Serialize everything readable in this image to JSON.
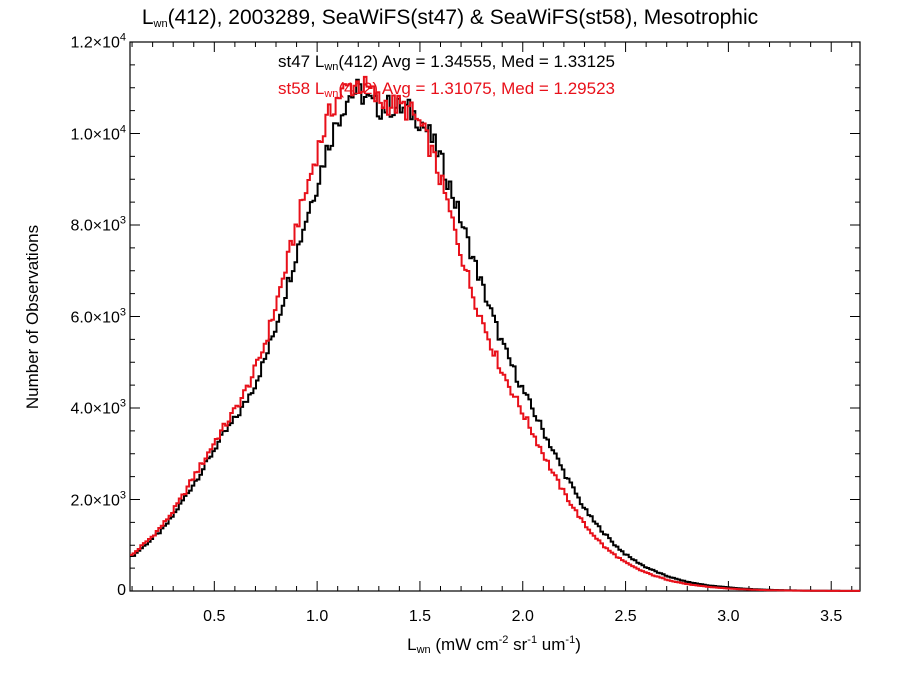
{
  "title": {
    "pre": "L",
    "sub": "wn",
    "post": "(412), 2003289, SeaWiFS(st47) & SeaWiFS(st58), Mesotrophic"
  },
  "ylabel": "Number of Observations",
  "xlabel": {
    "pre": "L",
    "sub": "wn",
    "p1": " (mW cm",
    "sup1": "-2",
    "p2": " sr",
    "sup2": "-1",
    "p3": " um",
    "sup3": "-1",
    "p4": ")"
  },
  "stats": {
    "st47": {
      "pre": "st47 L",
      "sub": "wn",
      "post": "(412) Avg = 1.34555, Med = 1.33125",
      "color": "#000000"
    },
    "st58": {
      "pre": "st58 L",
      "sub": "wn",
      "post": "(412) Avg = 1.31075, Med = 1.29523",
      "color": "#e8101a"
    }
  },
  "y_ticks": [
    {
      "value": 0,
      "base": "0",
      "exp": ""
    },
    {
      "value": 2000,
      "base": "2.0×10",
      "exp": "3"
    },
    {
      "value": 4000,
      "base": "4.0×10",
      "exp": "3"
    },
    {
      "value": 6000,
      "base": "6.0×10",
      "exp": "3"
    },
    {
      "value": 8000,
      "base": "8.0×10",
      "exp": "3"
    },
    {
      "value": 10000,
      "base": "1.0×10",
      "exp": "4"
    },
    {
      "value": 12000,
      "base": "1.2×10",
      "exp": "4"
    }
  ],
  "x_ticks": [
    "0.5",
    "1.0",
    "1.5",
    "2.0",
    "2.5",
    "3.0",
    "3.5"
  ],
  "chart_data": {
    "type": "line",
    "style": "histogram-step",
    "xlim": [
      0.09,
      3.64
    ],
    "ylim": [
      0,
      12000
    ],
    "grid": false,
    "series": [
      {
        "name": "st47",
        "color": "#000000",
        "x": [
          0.1,
          0.15,
          0.2,
          0.25,
          0.3,
          0.35,
          0.4,
          0.45,
          0.5,
          0.55,
          0.6,
          0.65,
          0.7,
          0.75,
          0.8,
          0.85,
          0.9,
          0.95,
          1.0,
          1.05,
          1.1,
          1.15,
          1.2,
          1.25,
          1.3,
          1.35,
          1.4,
          1.45,
          1.5,
          1.55,
          1.6,
          1.65,
          1.7,
          1.75,
          1.8,
          1.85,
          1.9,
          1.95,
          2.0,
          2.05,
          2.1,
          2.15,
          2.2,
          2.25,
          2.3,
          2.35,
          2.4,
          2.45,
          2.5,
          2.55,
          2.6,
          2.65,
          2.7,
          2.75,
          2.8,
          2.85,
          2.9,
          2.95,
          3.0,
          3.05,
          3.1,
          3.15,
          3.2,
          3.25,
          3.3,
          3.35,
          3.4,
          3.45,
          3.5,
          3.55,
          3.6,
          3.64
        ],
        "values": [
          750,
          950,
          1150,
          1350,
          1650,
          2000,
          2350,
          2700,
          3100,
          3450,
          3750,
          4100,
          4550,
          5100,
          5800,
          6600,
          7400,
          8200,
          8900,
          9700,
          10300,
          10800,
          10950,
          10700,
          10550,
          10600,
          10550,
          10500,
          10300,
          9950,
          9450,
          8800,
          8100,
          7400,
          6700,
          6050,
          5400,
          4900,
          4400,
          3950,
          3500,
          3050,
          2600,
          2200,
          1800,
          1500,
          1250,
          1000,
          800,
          650,
          520,
          420,
          330,
          260,
          200,
          160,
          125,
          100,
          80,
          60,
          45,
          35,
          25,
          20,
          15,
          10,
          8,
          6,
          4,
          3,
          2,
          2
        ]
      },
      {
        "name": "st58",
        "color": "#e8101a",
        "x": [
          0.1,
          0.15,
          0.2,
          0.25,
          0.3,
          0.35,
          0.4,
          0.45,
          0.5,
          0.55,
          0.6,
          0.65,
          0.7,
          0.75,
          0.8,
          0.85,
          0.9,
          0.95,
          1.0,
          1.05,
          1.1,
          1.15,
          1.2,
          1.25,
          1.3,
          1.35,
          1.4,
          1.45,
          1.5,
          1.55,
          1.6,
          1.65,
          1.7,
          1.75,
          1.8,
          1.85,
          1.9,
          1.95,
          2.0,
          2.05,
          2.1,
          2.15,
          2.2,
          2.25,
          2.3,
          2.35,
          2.4,
          2.45,
          2.5,
          2.55,
          2.6,
          2.65,
          2.7,
          2.75,
          2.8,
          2.85,
          2.9,
          2.95,
          3.0,
          3.05,
          3.1,
          3.15,
          3.2,
          3.25,
          3.3,
          3.35,
          3.4,
          3.45,
          3.5,
          3.55,
          3.6,
          3.64
        ],
        "values": [
          780,
          1000,
          1200,
          1450,
          1750,
          2100,
          2500,
          2850,
          3250,
          3600,
          3950,
          4350,
          4850,
          5450,
          6250,
          7100,
          8000,
          8800,
          9600,
          10300,
          10800,
          11000,
          11100,
          10950,
          10700,
          10650,
          10600,
          10500,
          10200,
          9700,
          9000,
          8200,
          7400,
          6600,
          5950,
          5350,
          4800,
          4350,
          3900,
          3450,
          3000,
          2550,
          2150,
          1800,
          1450,
          1200,
          950,
          780,
          620,
          500,
          400,
          320,
          250,
          195,
          150,
          118,
          92,
          72,
          55,
          42,
          32,
          24,
          18,
          14,
          10,
          8,
          6,
          4,
          3,
          2,
          2,
          1
        ]
      }
    ]
  }
}
